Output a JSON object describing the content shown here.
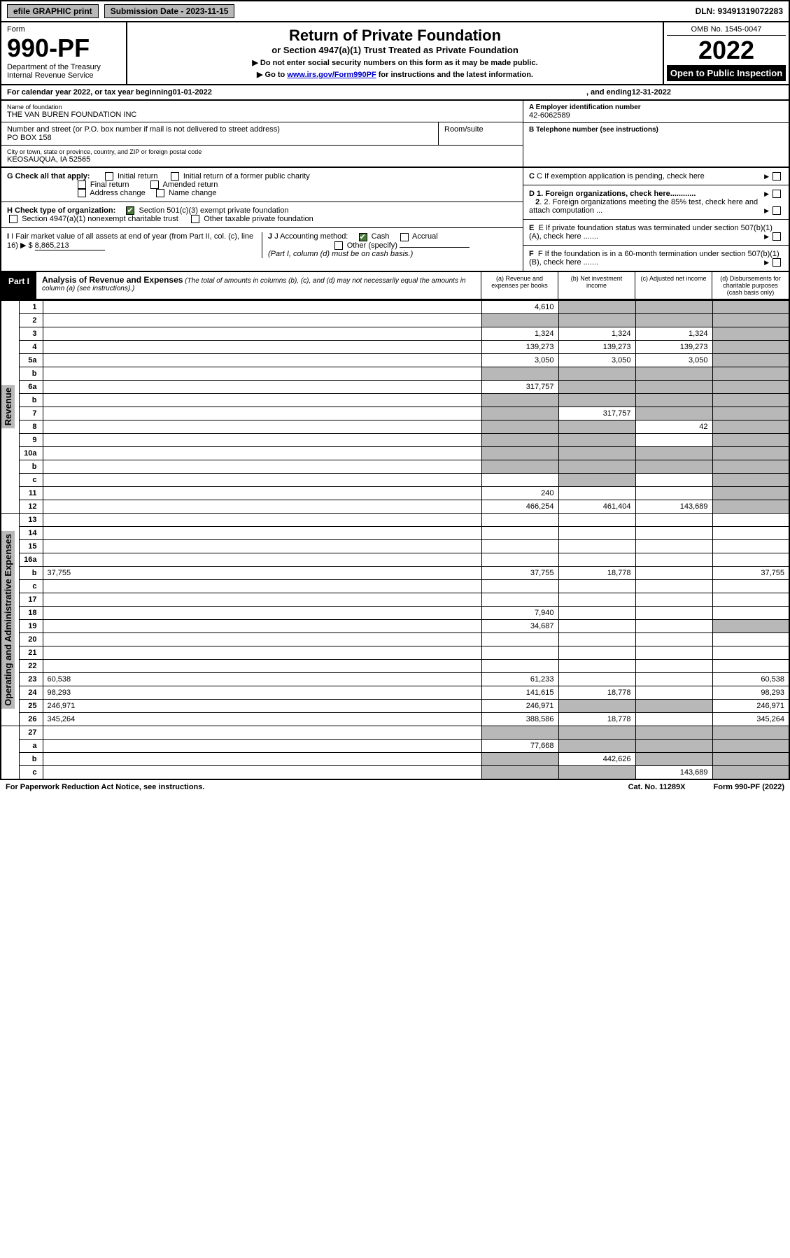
{
  "topbar": {
    "efile": "efile GRAPHIC print",
    "submission": "Submission Date - 2023-11-15",
    "dln": "DLN: 93491319072283"
  },
  "header": {
    "form_word": "Form",
    "form_no": "990-PF",
    "dept1": "Department of the Treasury",
    "dept2": "Internal Revenue Service",
    "title": "Return of Private Foundation",
    "subtitle": "or Section 4947(a)(1) Trust Treated as Private Foundation",
    "note1": "▶ Do not enter social security numbers on this form as it may be made public.",
    "note2_pre": "▶ Go to ",
    "note2_link": "www.irs.gov/Form990PF",
    "note2_post": " for instructions and the latest information.",
    "omb": "OMB No. 1545-0047",
    "year": "2022",
    "open": "Open to Public Inspection"
  },
  "calyear": {
    "pre": "For calendar year 2022, or tax year beginning ",
    "begin": "01-01-2022",
    "mid": " , and ending ",
    "end": "12-31-2022"
  },
  "info": {
    "name_lbl": "Name of foundation",
    "name": "THE VAN BUREN FOUNDATION INC",
    "addr_lbl": "Number and street (or P.O. box number if mail is not delivered to street address)",
    "addr": "PO BOX 158",
    "room_lbl": "Room/suite",
    "city_lbl": "City or town, state or province, country, and ZIP or foreign postal code",
    "city": "KEOSAUQUA, IA  52565",
    "a_lbl": "A Employer identification number",
    "a_val": "42-6062589",
    "b_lbl": "B Telephone number (see instructions)",
    "c_lbl": "C If exemption application is pending, check here",
    "d1": "D 1. Foreign organizations, check here............",
    "d2": "2. Foreign organizations meeting the 85% test, check here and attach computation ...",
    "e": "E  If private foundation status was terminated under section 507(b)(1)(A), check here .......",
    "f": "F  If the foundation is in a 60-month termination under section 507(b)(1)(B), check here .......",
    "g_lbl": "G Check all that apply:",
    "g_opts": [
      "Initial return",
      "Initial return of a former public charity",
      "Final return",
      "Amended return",
      "Address change",
      "Name change"
    ],
    "h_lbl": "H Check type of organization:",
    "h_opts": [
      "Section 501(c)(3) exempt private foundation",
      "Section 4947(a)(1) nonexempt charitable trust",
      "Other taxable private foundation"
    ],
    "i_lbl": "I Fair market value of all assets at end of year (from Part II, col. (c), line 16) ▶ $",
    "i_val": "8,865,213",
    "j_lbl": "J Accounting method:",
    "j_opts": [
      "Cash",
      "Accrual",
      "Other (specify)"
    ],
    "j_note": "(Part I, column (d) must be on cash basis.)"
  },
  "part": {
    "label": "Part I",
    "title": "Analysis of Revenue and Expenses",
    "desc": " (The total of amounts in columns (b), (c), and (d) may not necessarily equal the amounts in column (a) (see instructions).)",
    "cols": [
      "(a)  Revenue and expenses per books",
      "(b)  Net investment income",
      "(c)  Adjusted net income",
      "(d)  Disbursements for charitable purposes (cash basis only)"
    ]
  },
  "side_labels": {
    "revenue": "Revenue",
    "expenses": "Operating and Administrative Expenses"
  },
  "rows": [
    {
      "n": "1",
      "d": "",
      "a": "4,610",
      "b": "",
      "c": "",
      "bshade": true,
      "cshade": true,
      "dshade": true
    },
    {
      "n": "2",
      "d": "",
      "a": "",
      "b": "",
      "c": "",
      "ashade": true,
      "bshade": true,
      "cshade": true,
      "dshade": true,
      "html": true
    },
    {
      "n": "3",
      "d": "",
      "a": "1,324",
      "b": "1,324",
      "c": "1,324",
      "dshade": true
    },
    {
      "n": "4",
      "d": "",
      "a": "139,273",
      "b": "139,273",
      "c": "139,273",
      "dshade": true
    },
    {
      "n": "5a",
      "d": "",
      "a": "3,050",
      "b": "3,050",
      "c": "3,050",
      "dshade": true
    },
    {
      "n": "b",
      "d": "",
      "a": "",
      "b": "",
      "c": "",
      "ashade": true,
      "bshade": true,
      "cshade": true,
      "dshade": true,
      "html": true
    },
    {
      "n": "6a",
      "d": "",
      "a": "317,757",
      "b": "",
      "c": "",
      "bshade": true,
      "cshade": true,
      "dshade": true
    },
    {
      "n": "b",
      "d": "",
      "a": "",
      "b": "",
      "c": "",
      "ashade": true,
      "bshade": true,
      "cshade": true,
      "dshade": true,
      "html": true
    },
    {
      "n": "7",
      "d": "",
      "a": "",
      "b": "317,757",
      "c": "",
      "ashade": true,
      "cshade": true,
      "dshade": true
    },
    {
      "n": "8",
      "d": "",
      "a": "",
      "b": "",
      "c": "42",
      "ashade": true,
      "bshade": true,
      "dshade": true
    },
    {
      "n": "9",
      "d": "",
      "a": "",
      "b": "",
      "c": "",
      "ashade": true,
      "bshade": true,
      "dshade": true
    },
    {
      "n": "10a",
      "d": "",
      "a": "",
      "b": "",
      "c": "",
      "ashade": true,
      "bshade": true,
      "cshade": true,
      "dshade": true,
      "html": true
    },
    {
      "n": "b",
      "d": "",
      "a": "",
      "b": "",
      "c": "",
      "ashade": true,
      "bshade": true,
      "cshade": true,
      "dshade": true,
      "html": true
    },
    {
      "n": "c",
      "d": "",
      "a": "",
      "b": "",
      "c": "",
      "bshade": true,
      "dshade": true
    },
    {
      "n": "11",
      "d": "",
      "a": "240",
      "b": "",
      "c": "",
      "dshade": true
    },
    {
      "n": "12",
      "d": "",
      "a": "466,254",
      "b": "461,404",
      "c": "143,689",
      "dshade": true,
      "html": true
    },
    {
      "n": "13",
      "d": "",
      "a": "",
      "b": "",
      "c": ""
    },
    {
      "n": "14",
      "d": "",
      "a": "",
      "b": "",
      "c": ""
    },
    {
      "n": "15",
      "d": "",
      "a": "",
      "b": "",
      "c": ""
    },
    {
      "n": "16a",
      "d": "",
      "a": "",
      "b": "",
      "c": ""
    },
    {
      "n": "b",
      "d": "37,755",
      "a": "37,755",
      "b": "18,778",
      "c": ""
    },
    {
      "n": "c",
      "d": "",
      "a": "",
      "b": "",
      "c": ""
    },
    {
      "n": "17",
      "d": "",
      "a": "",
      "b": "",
      "c": ""
    },
    {
      "n": "18",
      "d": "",
      "a": "7,940",
      "b": "",
      "c": ""
    },
    {
      "n": "19",
      "d": "",
      "a": "34,687",
      "b": "",
      "c": "",
      "dshade": true
    },
    {
      "n": "20",
      "d": "",
      "a": "",
      "b": "",
      "c": ""
    },
    {
      "n": "21",
      "d": "",
      "a": "",
      "b": "",
      "c": ""
    },
    {
      "n": "22",
      "d": "",
      "a": "",
      "b": "",
      "c": ""
    },
    {
      "n": "23",
      "d": "60,538",
      "a": "61,233",
      "b": "",
      "c": ""
    },
    {
      "n": "24",
      "d": "98,293",
      "a": "141,615",
      "b": "18,778",
      "c": "",
      "html": true
    },
    {
      "n": "25",
      "d": "246,971",
      "a": "246,971",
      "b": "",
      "c": "",
      "bshade": true,
      "cshade": true
    },
    {
      "n": "26",
      "d": "345,264",
      "a": "388,586",
      "b": "18,778",
      "c": "",
      "html": true
    },
    {
      "n": "27",
      "d": "",
      "a": "",
      "b": "",
      "c": "",
      "ashade": true,
      "bshade": true,
      "cshade": true,
      "dshade": true
    },
    {
      "n": "a",
      "d": "",
      "a": "77,668",
      "b": "",
      "c": "",
      "bshade": true,
      "cshade": true,
      "dshade": true,
      "html": true
    },
    {
      "n": "b",
      "d": "",
      "a": "",
      "b": "442,626",
      "c": "",
      "ashade": true,
      "cshade": true,
      "dshade": true,
      "html": true
    },
    {
      "n": "c",
      "d": "",
      "a": "",
      "b": "",
      "c": "143,689",
      "ashade": true,
      "bshade": true,
      "dshade": true,
      "html": true
    }
  ],
  "footer": {
    "left": "For Paperwork Reduction Act Notice, see instructions.",
    "mid": "Cat. No. 11289X",
    "right": "Form 990-PF (2022)"
  },
  "colors": {
    "shade": "#b8b8b8",
    "check_green": "#4a7a3a",
    "link": "#0000cc"
  }
}
